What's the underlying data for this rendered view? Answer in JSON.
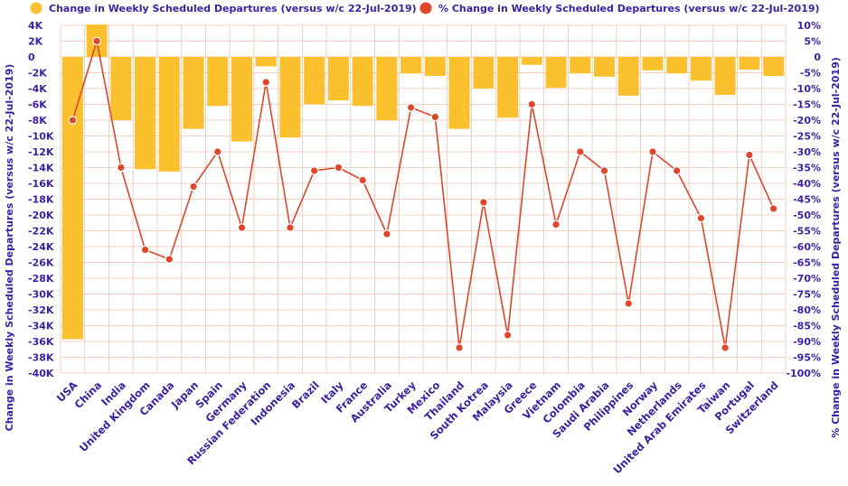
{
  "colors": {
    "bars": "#fbc02d",
    "line": "#e0462a",
    "grid": "#f3c3b3",
    "text": "#3b1fa8"
  },
  "legend": {
    "bar_label": "Change in Weekly Scheduled Departures (versus w/c 22-Jul-2019)",
    "line_label": "% Change in Weekly Scheduled Departures (versus w/c 22-Jul-2019)"
  },
  "chart_data": {
    "type": "bar",
    "categories": [
      "USA",
      "China",
      "India",
      "United Kingdom",
      "Canada",
      "Japan",
      "Spain",
      "Germany",
      "Russian Federation",
      "Indonesia",
      "Brazil",
      "Italy",
      "France",
      "Australia",
      "Turkey",
      "Mexico",
      "Thailand",
      "South Kotrea",
      "Malaysia",
      "Greece",
      "Vietnam",
      "Colombia",
      "Saudi Arabia",
      "Philippines",
      "Norway",
      "Netherlands",
      "United Arab Emirates",
      "Taiwan",
      "Portugal",
      "Switzerland"
    ],
    "series": [
      {
        "name": "Change in Weekly Scheduled Departures (versus w/c 22-Jul-2019)",
        "type": "bar",
        "axis": "left",
        "values": [
          -35700,
          4100,
          -8000,
          -14200,
          -14500,
          -9100,
          -6200,
          -10700,
          -1200,
          -10200,
          -6000,
          -5500,
          -6200,
          -8000,
          -2100,
          -2400,
          -9100,
          -4000,
          -7700,
          -1000,
          -3900,
          -2100,
          -2500,
          -4900,
          -1700,
          -2100,
          -3000,
          -4800,
          -1600,
          -2400
        ]
      },
      {
        "name": "% Change in Weekly Scheduled Departures (versus w/c 22-Jul-2019)",
        "type": "line",
        "axis": "right",
        "values": [
          -20,
          5,
          -35,
          -61,
          -64,
          -41,
          -30,
          -54,
          -8,
          -54,
          -36,
          -35,
          -39,
          -56,
          -16,
          -19,
          -92,
          -46,
          -88,
          -15,
          -53,
          -30,
          -36,
          -78,
          -30,
          -36,
          -51,
          -92,
          -31,
          -48
        ]
      }
    ],
    "y_left": {
      "label": "Change in Weekly Scheduled Departures (versus w/c 22-Jul-2019)",
      "ylim": [
        -40000,
        4000
      ],
      "ticks": [
        4000,
        2000,
        0,
        -2000,
        -4000,
        -6000,
        -8000,
        -10000,
        -12000,
        -14000,
        -16000,
        -18000,
        -20000,
        -22000,
        -24000,
        -26000,
        -28000,
        -30000,
        -32000,
        -34000,
        -36000,
        -38000,
        -40000
      ],
      "tick_labels": [
        "4K",
        "2K",
        "0",
        "-2K",
        "-4K",
        "-6K",
        "-8K",
        "-10K",
        "-12K",
        "-14K",
        "-16K",
        "-18K",
        "-20K",
        "-22K",
        "-24K",
        "-26K",
        "-28K",
        "-30K",
        "-32K",
        "-34K",
        "-36K",
        "-38K",
        "-40K"
      ]
    },
    "y_right": {
      "label": "% Change in Weekly Scheduled Departures (versus w/c 22-Jul-2019)",
      "ylim": [
        -100,
        10
      ],
      "ticks": [
        10,
        5,
        0,
        -5,
        -10,
        -15,
        -20,
        -25,
        -30,
        -35,
        -40,
        -45,
        -50,
        -55,
        -60,
        -65,
        -70,
        -75,
        -80,
        -85,
        -90,
        -95,
        -100
      ],
      "tick_labels": [
        "10%",
        "5%",
        "0",
        "-5%",
        "-10%",
        "-15%",
        "-20%",
        "-25%",
        "-30%",
        "-35%",
        "-40%",
        "-45%",
        "-50%",
        "-55%",
        "-60%",
        "-65%",
        "-70%",
        "-75%",
        "-80%",
        "-85%",
        "-90%",
        "-95%",
        "-100%"
      ]
    },
    "grid": true,
    "legend_position": "top"
  }
}
